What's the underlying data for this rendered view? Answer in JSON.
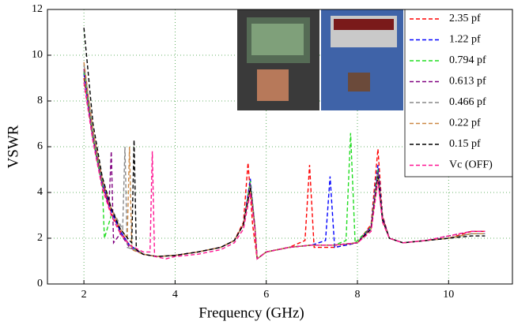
{
  "chart_data": {
    "type": "line",
    "xlabel": "Frequency (GHz)",
    "ylabel": "VSWR",
    "xlim": [
      1.2,
      11.4
    ],
    "ylim": [
      0,
      12
    ],
    "xticks": [
      2,
      4,
      6,
      8,
      10
    ],
    "yticks": [
      0,
      2,
      4,
      6,
      8,
      10,
      12
    ],
    "grid": true,
    "legend": "upper right",
    "series": [
      {
        "name": "2.35  pf",
        "color": "#ff0000",
        "x": [
          2,
          2.2,
          2.4,
          2.6,
          2.8,
          3.0,
          3.3,
          3.6,
          4,
          4.5,
          5,
          5.3,
          5.5,
          5.6,
          5.7,
          5.8,
          6,
          6.5,
          6.85,
          6.95,
          7.05,
          7.5,
          8,
          8.3,
          8.45,
          8.55,
          8.7,
          9,
          9.5,
          10,
          10.5,
          10.8
        ],
        "values": [
          9.0,
          6.3,
          4.3,
          3.1,
          2.3,
          1.7,
          1.3,
          1.2,
          1.25,
          1.4,
          1.6,
          1.9,
          2.7,
          5.3,
          2.6,
          1.1,
          1.4,
          1.6,
          1.9,
          5.2,
          1.6,
          1.6,
          1.8,
          2.6,
          5.9,
          3.0,
          2.0,
          1.8,
          1.9,
          2.0,
          2.3,
          2.3
        ]
      },
      {
        "name": "1.22  pf",
        "color": "#0000ff",
        "x": [
          2,
          2.2,
          2.4,
          2.6,
          2.8,
          3.0,
          3.3,
          3.6,
          4,
          4.5,
          5,
          5.3,
          5.5,
          5.65,
          5.75,
          5.8,
          6,
          6.5,
          7,
          7.3,
          7.4,
          7.5,
          8,
          8.3,
          8.45,
          8.55,
          8.7,
          9,
          9.5,
          10,
          10.5,
          10.8
        ],
        "values": [
          9.2,
          6.4,
          4.4,
          3.2,
          2.3,
          1.7,
          1.3,
          1.2,
          1.25,
          1.4,
          1.6,
          1.9,
          2.6,
          4.6,
          2.5,
          1.1,
          1.4,
          1.6,
          1.7,
          1.9,
          4.7,
          1.6,
          1.8,
          2.5,
          5.2,
          2.9,
          2.0,
          1.8,
          1.9,
          2.0,
          2.2,
          2.2
        ]
      },
      {
        "name": "0.794  pf",
        "color": "#22dd22",
        "x": [
          2,
          2.2,
          2.35,
          2.4,
          2.45,
          2.6,
          2.8,
          3.0,
          3.3,
          3.6,
          4,
          4.5,
          5,
          5.3,
          5.5,
          5.65,
          5.75,
          5.8,
          6,
          6.5,
          7,
          7.5,
          7.75,
          7.85,
          7.95,
          8.3,
          8.45,
          8.55,
          8.7,
          9,
          9.5,
          10,
          10.5,
          10.8
        ],
        "values": [
          9.3,
          6.4,
          4.8,
          4.5,
          2.0,
          3.0,
          2.2,
          1.7,
          1.3,
          1.2,
          1.25,
          1.4,
          1.6,
          1.9,
          2.6,
          4.5,
          2.5,
          1.1,
          1.4,
          1.6,
          1.7,
          1.7,
          1.9,
          6.6,
          1.8,
          2.5,
          5.0,
          2.9,
          2.0,
          1.8,
          1.9,
          2.0,
          2.2,
          2.2
        ]
      },
      {
        "name": "0.613  pf",
        "color": "#800080",
        "x": [
          2,
          2.2,
          2.4,
          2.55,
          2.6,
          2.65,
          2.8,
          3.0,
          3.3,
          3.6,
          4,
          4.5,
          5,
          5.3,
          5.5,
          5.65,
          5.75,
          5.8,
          6,
          6.5,
          7,
          7.5,
          8,
          8.3,
          8.45,
          8.55,
          8.7,
          9,
          9.5,
          10,
          10.5,
          10.8
        ],
        "values": [
          9.4,
          6.5,
          4.5,
          3.4,
          5.8,
          1.8,
          2.2,
          1.6,
          1.3,
          1.2,
          1.25,
          1.4,
          1.6,
          1.9,
          2.6,
          4.4,
          2.5,
          1.1,
          1.4,
          1.6,
          1.7,
          1.7,
          1.8,
          2.5,
          4.9,
          2.9,
          2.0,
          1.8,
          1.9,
          2.1,
          2.3,
          2.3
        ]
      },
      {
        "name": "0.466  pf",
        "color": "#888888",
        "x": [
          2,
          2.2,
          2.4,
          2.6,
          2.85,
          2.9,
          2.95,
          3.1,
          3.3,
          3.6,
          4,
          4.5,
          5,
          5.3,
          5.5,
          5.65,
          5.75,
          5.8,
          6,
          6.5,
          7,
          7.5,
          8,
          8.3,
          8.45,
          8.55,
          8.7,
          9,
          9.5,
          10,
          10.5,
          10.8
        ],
        "values": [
          9.6,
          6.6,
          4.6,
          3.3,
          2.4,
          6.0,
          1.6,
          1.5,
          1.3,
          1.2,
          1.25,
          1.4,
          1.6,
          1.9,
          2.6,
          4.3,
          2.5,
          1.1,
          1.4,
          1.6,
          1.7,
          1.7,
          1.8,
          2.4,
          4.8,
          2.8,
          2.0,
          1.8,
          1.9,
          2.0,
          2.2,
          2.2
        ]
      },
      {
        "name": "0.22  pf",
        "color": "#cc8844",
        "x": [
          2,
          2.2,
          2.4,
          2.6,
          2.8,
          2.95,
          3.0,
          3.05,
          3.3,
          3.6,
          4,
          4.5,
          5,
          5.3,
          5.5,
          5.65,
          5.75,
          5.8,
          6,
          6.5,
          7,
          7.5,
          8,
          8.3,
          8.45,
          8.55,
          8.7,
          9,
          9.5,
          10,
          10.5,
          10.8
        ],
        "values": [
          9.7,
          6.7,
          4.6,
          3.3,
          2.4,
          2.0,
          6.0,
          1.5,
          1.3,
          1.2,
          1.25,
          1.4,
          1.6,
          1.9,
          2.6,
          4.2,
          2.5,
          1.1,
          1.4,
          1.6,
          1.7,
          1.7,
          1.8,
          2.4,
          4.7,
          2.8,
          2.0,
          1.8,
          1.9,
          2.0,
          2.2,
          2.2
        ]
      },
      {
        "name": "0.15  pf",
        "color": "#000000",
        "x": [
          2,
          2.2,
          2.4,
          2.6,
          2.8,
          3.0,
          3.05,
          3.1,
          3.15,
          3.3,
          3.6,
          4,
          4.5,
          5,
          5.3,
          5.5,
          5.65,
          5.75,
          5.8,
          6,
          6.5,
          7,
          7.5,
          8,
          8.3,
          8.45,
          8.55,
          8.7,
          9,
          9.5,
          10,
          10.5,
          10.8
        ],
        "values": [
          11.2,
          7.0,
          4.7,
          3.3,
          2.4,
          1.9,
          1.8,
          6.3,
          1.5,
          1.3,
          1.2,
          1.25,
          1.4,
          1.6,
          1.9,
          2.6,
          4.2,
          2.5,
          1.1,
          1.4,
          1.6,
          1.7,
          1.7,
          1.8,
          2.4,
          4.7,
          2.8,
          2.0,
          1.8,
          1.9,
          2.0,
          2.1,
          2.1
        ]
      },
      {
        "name": "Vc (OFF)",
        "color": "#ff1493",
        "x": [
          2,
          2.2,
          2.4,
          2.6,
          2.8,
          3.0,
          3.3,
          3.45,
          3.5,
          3.55,
          3.8,
          4,
          4.5,
          5,
          5.3,
          5.5,
          5.65,
          5.75,
          5.8,
          6,
          6.5,
          7,
          7.5,
          8,
          8.3,
          8.45,
          8.55,
          8.7,
          9,
          9.5,
          10,
          10.5,
          10.8
        ],
        "values": [
          8.8,
          6.2,
          4.2,
          3.0,
          2.2,
          1.7,
          1.4,
          1.4,
          5.8,
          1.2,
          1.1,
          1.2,
          1.3,
          1.5,
          1.8,
          2.4,
          4.0,
          2.4,
          1.1,
          1.4,
          1.6,
          1.7,
          1.7,
          1.8,
          2.3,
          4.5,
          2.7,
          2.0,
          1.8,
          1.9,
          2.1,
          2.3,
          2.3
        ]
      }
    ]
  }
}
